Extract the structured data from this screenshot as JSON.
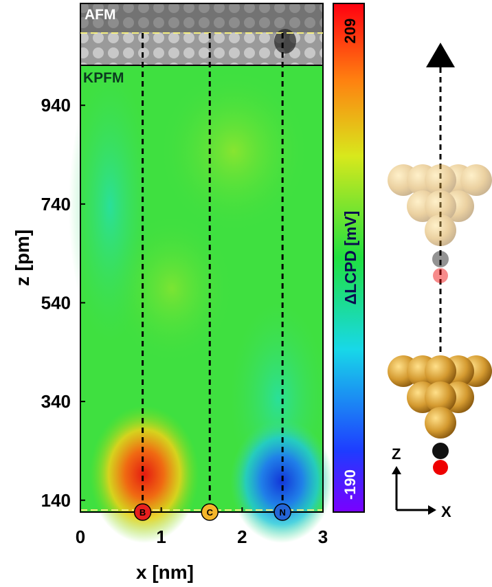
{
  "chart_data": {
    "type": "heatmap",
    "panel_labels": [
      "AFM",
      "KPFM"
    ],
    "xlabel": "x [nm]",
    "ylabel": "z [pm]",
    "xlim": [
      0,
      3
    ],
    "xticks": [
      0,
      1,
      2,
      3
    ],
    "ylim": [
      116,
      1021
    ],
    "yticks": [
      140,
      340,
      540,
      740,
      940
    ],
    "colorbar_label": "ΔLCPD [mV]",
    "clim": [
      -190,
      209
    ],
    "cticks": [
      -190,
      209
    ],
    "lines": [
      {
        "label": "B",
        "x": 0.77,
        "color": "#e8201e"
      },
      {
        "label": "C",
        "x": 1.6,
        "color": "#f5b62a"
      },
      {
        "label": "N",
        "x": 2.5,
        "color": "#2466d8"
      }
    ],
    "axes_labels": [
      "Z",
      "X"
    ]
  }
}
